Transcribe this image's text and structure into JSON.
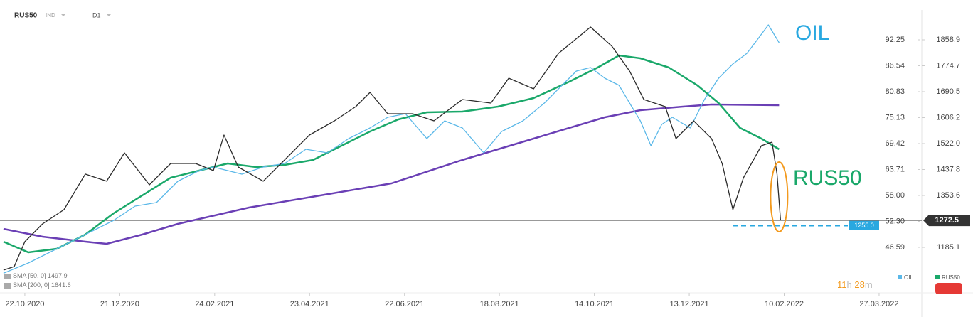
{
  "chart_data": {
    "type": "line",
    "symbol": "RUS50",
    "symbol_class": "IND",
    "timeframe": "D1",
    "xlim": [
      -15.7,
      564.3
    ],
    "xticks": [
      {
        "value": 0,
        "label": "22.10.2020"
      },
      {
        "value": 60,
        "label": "21.12.2020"
      },
      {
        "value": 120,
        "label": "24.02.2021"
      },
      {
        "value": 180,
        "label": "23.04.2021"
      },
      {
        "value": 240,
        "label": "22.06.2021"
      },
      {
        "value": 300,
        "label": "18.08.2021"
      },
      {
        "value": 360,
        "label": "14.10.2021"
      },
      {
        "value": 420,
        "label": "13.12.2021"
      },
      {
        "value": 480,
        "label": "10.02.2022"
      },
      {
        "value": 540,
        "label": "27.03.2022"
      }
    ],
    "ylim": [
      40.8,
      98.66
    ],
    "yticks": [
      46.59,
      {
        "value": 52.3,
        "label": "52.30"
      },
      {
        "value": 58,
        "label": "58.00"
      },
      63.71,
      69.42,
      75.13,
      80.83,
      86.54,
      92.25
    ],
    "y2lim": [
      1099.8,
      1953.5
    ],
    "y2ticks": [
      1185.1,
      1353.6,
      1437.8,
      {
        "value": 1522,
        "label": "1522.0"
      },
      1606.2,
      1690.5,
      1774.7,
      1858.9
    ],
    "current_price": 1272.5,
    "support": {
      "value": 1255,
      "label": "1255.0"
    },
    "annotations": [
      {
        "text": "OIL",
        "color": "#29a8e0"
      },
      {
        "text": "RUS50",
        "color": "#1aa86a"
      }
    ],
    "timer": {
      "hours": 11,
      "hours_unit": "h",
      "minutes": 28,
      "minutes_unit": "m"
    },
    "series": [
      {
        "name": "OIL",
        "color": "#5bb8e8",
        "axis": "y",
        "x": [
          -13.5,
          2.2,
          15.7,
          29.2,
          42.7,
          56.2,
          69.7,
          83.2,
          96.7,
          110.2,
          119.2,
          128.2,
          137.2,
          150.7,
          164.2,
          177.7,
          191.2,
          204.7,
          218.2,
          229.4,
          240.6,
          254.1,
          265.4,
          276.6,
          290.1,
          301.4,
          314.9,
          328.4,
          339.6,
          348.6,
          357.6,
          366.6,
          375.6,
          382.3,
          389.1,
          395.8,
          402.6,
          409.3,
          420.6,
          429.6,
          438.6,
          447.6,
          456.5,
          463.3,
          470.0,
          476.8
        ],
        "values": [
          40.9,
          43.15,
          45.49,
          47.84,
          50.19,
          52.53,
          55.66,
          56.44,
          61.13,
          63.48,
          64.26,
          63.48,
          62.7,
          64.26,
          65.04,
          68.17,
          67.39,
          70.51,
          72.86,
          75.21,
          75.99,
          70.51,
          74.42,
          72.86,
          67.39,
          72.08,
          74.42,
          78.33,
          82.24,
          85.37,
          86.15,
          83.81,
          82.24,
          78.33,
          74.42,
          68.95,
          73.64,
          75.21,
          72.86,
          79.12,
          83.81,
          86.93,
          89.28,
          92.41,
          95.53,
          91.62
        ]
      },
      {
        "name": "RUS50",
        "color": "#2b2b2b",
        "axis": "y2",
        "x": [
          -13.5,
          -6.7,
          0,
          11.2,
          24.7,
          38.2,
          51.7,
          63.0,
          78.7,
          92.2,
          108.0,
          119.2,
          125.9,
          134.9,
          150.7,
          164.2,
          179.9,
          195.7,
          209.2,
          218.2,
          229.4,
          245.1,
          258.6,
          276.6,
          294.6,
          305.9,
          321.6,
          337.4,
          357.6,
          371.1,
          382.3,
          391.3,
          404.8,
          411.6,
          422.8,
          434.1,
          440.8,
          447.6,
          454.3,
          465.6,
          472.3,
          475.5,
          477.7
        ],
        "values": [
          1111.3,
          1122.8,
          1203.6,
          1261.3,
          1307.4,
          1423.0,
          1399.9,
          1492.0,
          1388.2,
          1457.4,
          1457.4,
          1434.3,
          1549.7,
          1445.9,
          1399.9,
          1469.0,
          1549.7,
          1595.8,
          1642.0,
          1688.2,
          1618.9,
          1618.9,
          1595.8,
          1665.1,
          1653.5,
          1734.3,
          1699.7,
          1815.1,
          1900.4,
          1838.1,
          1757.4,
          1665.1,
          1642.0,
          1538.2,
          1595.8,
          1538.2,
          1457.4,
          1307.4,
          1411.3,
          1515.1,
          1526.6,
          1422.8,
          1272.5
        ]
      },
      {
        "name": "SMA [50, 0]",
        "readout": 1497.9,
        "color": "#1aa86a",
        "axis": "y2",
        "x": [
          -13.5,
          2.2,
          20.2,
          38.2,
          56.2,
          74.2,
          92.2,
          110.2,
          128.2,
          146.2,
          164.2,
          182.2,
          200.2,
          218.2,
          236.1,
          254.1,
          276.6,
          299.1,
          321.6,
          344.1,
          362.1,
          375.6,
          389.1,
          407.1,
          425.1,
          438.6,
          452.1,
          465.6,
          476.8
        ],
        "values": [
          1203.6,
          1169.0,
          1180.5,
          1226.7,
          1295.9,
          1353.6,
          1411.3,
          1434.3,
          1457.4,
          1445.9,
          1452.8,
          1469.0,
          1515.1,
          1561.3,
          1600.5,
          1623.6,
          1625.9,
          1642.0,
          1669.7,
          1722.8,
          1768.9,
          1808.1,
          1798.9,
          1768.9,
          1711.2,
          1653.5,
          1572.8,
          1538.2,
          1503.6
        ]
      },
      {
        "name": "SMA [200, 0]",
        "readout": 1641.6,
        "color": "#6a3fb5",
        "axis": "y2",
        "x": [
          -13.5,
          11.2,
          38.2,
          51.7,
          74.2,
          96.7,
          141.7,
          186.7,
          231.7,
          276.6,
          321.6,
          366.6,
          389.1,
          416.1,
          434.1,
          476.8
        ],
        "values": [
          1245.1,
          1219.8,
          1203.6,
          1196.7,
          1226.7,
          1261.3,
          1314.4,
          1353.6,
          1392.8,
          1468.9,
          1538.2,
          1607.4,
          1630.5,
          1642.0,
          1649.0,
          1646.6
        ]
      }
    ]
  }
}
